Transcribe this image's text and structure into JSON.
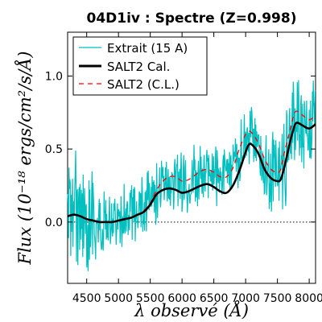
{
  "chart_data": {
    "type": "line",
    "title": "04D1iv : Spectre (Z=0.998)",
    "xlabel": "λ observé (Å)",
    "ylabel": "Flux (10⁻¹⁸ ergs/cm²/s/Å)",
    "xlim": [
      4200,
      8100
    ],
    "ylim": [
      -0.42,
      1.3
    ],
    "xticks": [
      4500,
      5000,
      5500,
      6000,
      6500,
      7000,
      7500,
      8000
    ],
    "yticks": [
      0.0,
      0.5,
      1.0
    ],
    "ytick_labels": [
      "0.0",
      "0.5",
      "1.0"
    ],
    "grid": false,
    "legend_position": "top-left",
    "zero_line": {
      "y": 0.0,
      "style": "dotted",
      "color": "#000000"
    },
    "series": [
      {
        "name": "Extrait (15 A)",
        "color": "#00bfbf",
        "style": "noisy",
        "x": [
          4200,
          4300,
          4400,
          4500,
          4600,
          4700,
          4800,
          4900,
          5000,
          5100,
          5200,
          5300,
          5400,
          5500,
          5600,
          5700,
          5800,
          5900,
          6000,
          6100,
          6200,
          6300,
          6400,
          6500,
          6600,
          6700,
          6800,
          6900,
          7000,
          7100,
          7200,
          7300,
          7400,
          7500,
          7600,
          7700,
          7800,
          7900,
          8000,
          8100
        ],
        "y": [
          0.06,
          0.09,
          0.05,
          0.03,
          0.01,
          0.0,
          -0.01,
          0.01,
          0.03,
          0.05,
          0.08,
          0.1,
          0.12,
          0.16,
          0.2,
          0.25,
          0.3,
          0.31,
          0.28,
          0.26,
          0.3,
          0.34,
          0.36,
          0.35,
          0.32,
          0.3,
          0.36,
          0.46,
          0.56,
          0.58,
          0.5,
          0.4,
          0.35,
          0.33,
          0.4,
          0.6,
          0.72,
          0.68,
          0.66,
          0.72
        ]
      },
      {
        "name": "SALT2 Cal.",
        "color": "#000000",
        "style": "solid",
        "x": [
          4200,
          4300,
          4400,
          4500,
          4600,
          4700,
          4800,
          4900,
          5000,
          5100,
          5200,
          5300,
          5400,
          5500,
          5600,
          5700,
          5800,
          5900,
          6000,
          6100,
          6200,
          6300,
          6400,
          6500,
          6600,
          6700,
          6800,
          6900,
          7000,
          7050,
          7100,
          7200,
          7300,
          7400,
          7500,
          7550,
          7600,
          7700,
          7750,
          7800,
          7900,
          8000,
          8100
        ],
        "y": [
          0.04,
          0.05,
          0.04,
          0.02,
          0.01,
          0.0,
          0.0,
          0.0,
          0.01,
          0.02,
          0.03,
          0.05,
          0.07,
          0.12,
          0.19,
          0.22,
          0.23,
          0.22,
          0.2,
          0.21,
          0.23,
          0.25,
          0.26,
          0.24,
          0.21,
          0.2,
          0.25,
          0.35,
          0.48,
          0.53,
          0.53,
          0.47,
          0.36,
          0.3,
          0.28,
          0.29,
          0.36,
          0.55,
          0.63,
          0.68,
          0.66,
          0.64,
          0.67
        ]
      },
      {
        "name": "SALT2 (C.L.)",
        "color": "#ff0000",
        "style": "dashed",
        "x": [
          4200,
          4300,
          4400,
          4500,
          4600,
          4700,
          4800,
          4900,
          5000,
          5100,
          5200,
          5300,
          5400,
          5500,
          5600,
          5700,
          5800,
          5900,
          6000,
          6100,
          6200,
          6300,
          6400,
          6500,
          6600,
          6700,
          6800,
          6900,
          7000,
          7050,
          7100,
          7200,
          7300,
          7400,
          7500,
          7550,
          7600,
          7700,
          7750,
          7800,
          7900,
          8000,
          8100
        ],
        "y": [
          0.04,
          0.05,
          0.04,
          0.02,
          0.01,
          0.0,
          0.0,
          0.0,
          0.01,
          0.02,
          0.03,
          0.05,
          0.08,
          0.13,
          0.22,
          0.28,
          0.31,
          0.31,
          0.28,
          0.29,
          0.32,
          0.35,
          0.36,
          0.34,
          0.31,
          0.31,
          0.37,
          0.5,
          0.6,
          0.62,
          0.61,
          0.54,
          0.43,
          0.36,
          0.34,
          0.36,
          0.46,
          0.63,
          0.72,
          0.76,
          0.73,
          0.7,
          0.73
        ]
      }
    ]
  }
}
